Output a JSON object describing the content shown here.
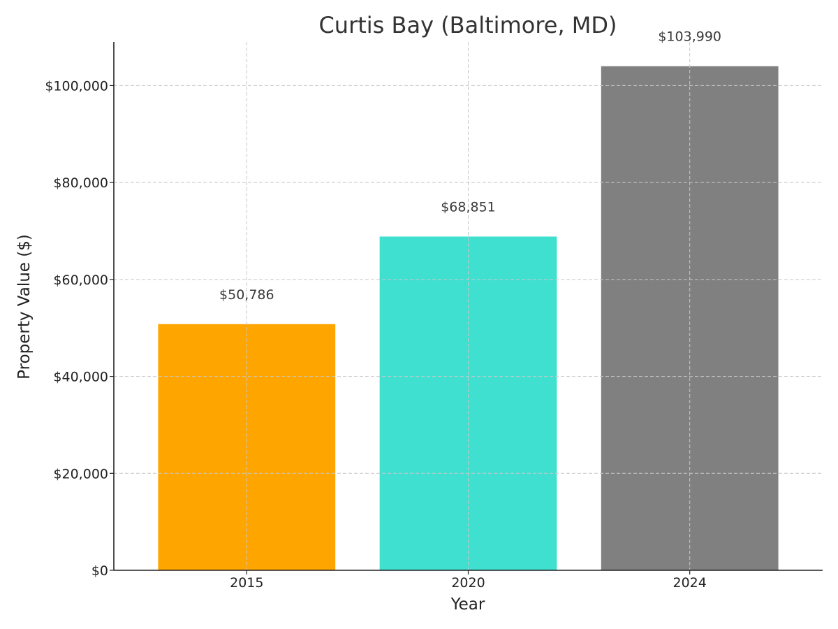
{
  "chart_data": {
    "type": "bar",
    "title": "Curtis Bay (Baltimore, MD)",
    "xlabel": "Year",
    "ylabel": "Property Value ($)",
    "categories": [
      "2015",
      "2020",
      "2024"
    ],
    "values": [
      50786,
      68851,
      103990
    ],
    "data_labels": [
      "$50,786",
      "$68,851",
      "$103,990"
    ],
    "colors": [
      "#FFA500",
      "#40E0D0",
      "#808080"
    ],
    "ylim": [
      0,
      109000
    ],
    "yticks": [
      0,
      20000,
      40000,
      60000,
      80000,
      100000
    ],
    "ytick_labels": [
      "$0",
      "$20,000",
      "$40,000",
      "$60,000",
      "$80,000",
      "$100,000"
    ],
    "grid": true
  }
}
